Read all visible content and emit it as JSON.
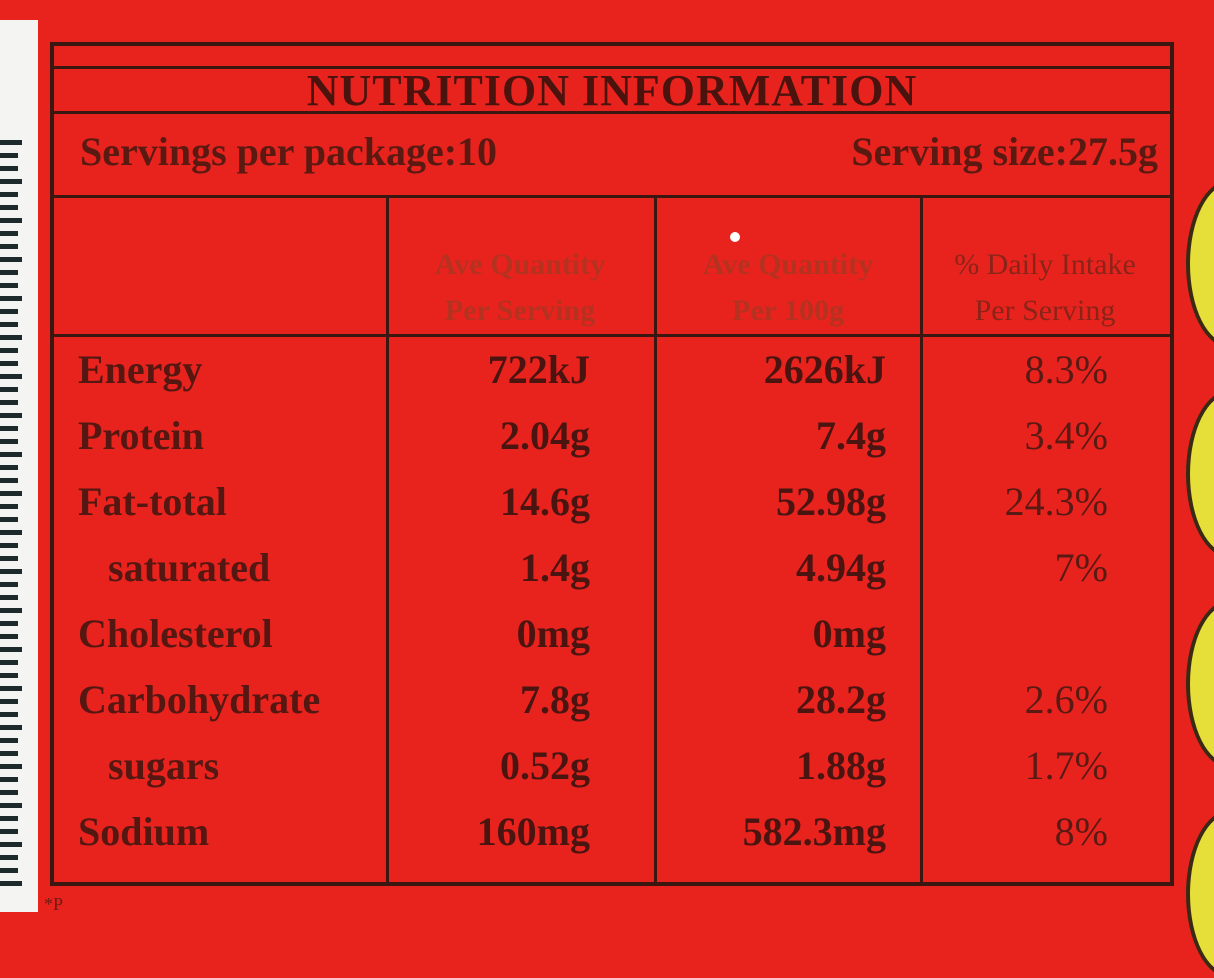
{
  "title": "NUTRITION INFORMATION",
  "servings_per_package": "Servings per package:10",
  "serving_size": "Serving size:27.5g",
  "columns": {
    "per_serving": [
      "Ave Quantity",
      "Per Serving"
    ],
    "per_100g": [
      "Ave Quantity",
      "Per 100g"
    ],
    "daily_intake": [
      "% Daily Intake",
      "Per Serving"
    ]
  },
  "rows": [
    {
      "label": "Energy",
      "per_serving": "722kJ",
      "per_100g": "2626kJ",
      "daily_intake": "8.3%",
      "indent": false
    },
    {
      "label": "Protein",
      "per_serving": "2.04g",
      "per_100g": "7.4g",
      "daily_intake": "3.4%",
      "indent": false
    },
    {
      "label": "Fat-total",
      "per_serving": "14.6g",
      "per_100g": "52.98g",
      "daily_intake": "24.3%",
      "indent": false
    },
    {
      "label": "saturated",
      "per_serving": "1.4g",
      "per_100g": "4.94g",
      "daily_intake": "7%",
      "indent": true
    },
    {
      "label": "Cholesterol",
      "per_serving": "0mg",
      "per_100g": "0mg",
      "daily_intake": "",
      "indent": false
    },
    {
      "label": "Carbohydrate",
      "per_serving": "7.8g",
      "per_100g": "28.2g",
      "daily_intake": "2.6%",
      "indent": false
    },
    {
      "label": "sugars",
      "per_serving": "0.52g",
      "per_100g": "1.88g",
      "daily_intake": "1.7%",
      "indent": true
    },
    {
      "label": "Sodium",
      "per_serving": "160mg",
      "per_100g": "582.3mg",
      "daily_intake": "8%",
      "indent": false
    }
  ],
  "footer": "*P",
  "colors": {
    "background": "#e8231e",
    "border": "#3b1712",
    "badge": "#e6df3a",
    "barcode": "#f4f4f2"
  }
}
